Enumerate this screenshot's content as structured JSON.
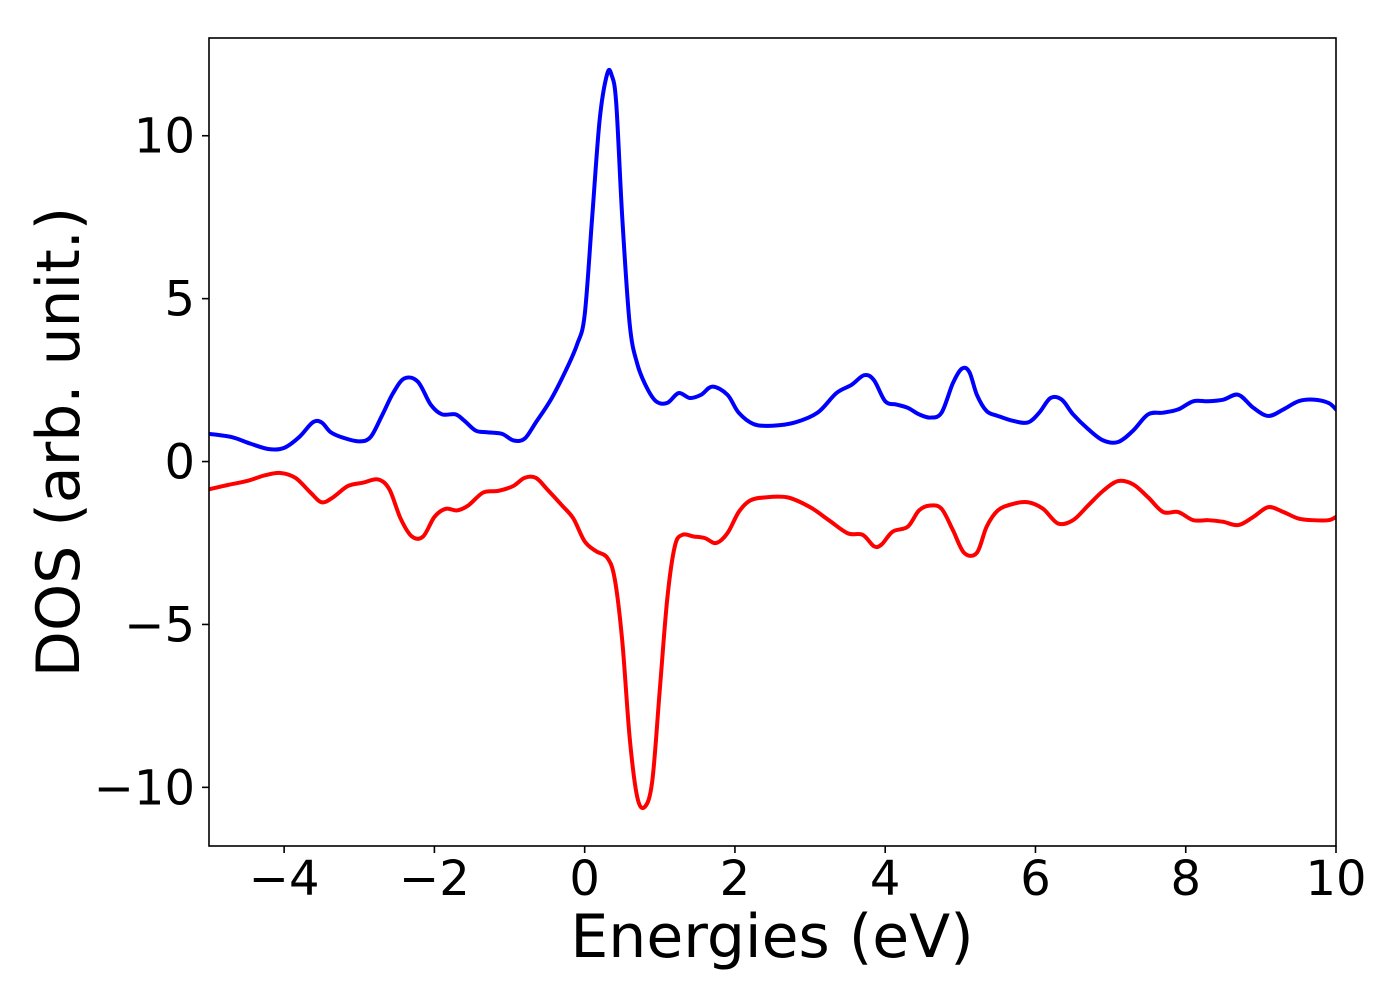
{
  "chart_data": {
    "type": "line",
    "title": "",
    "xlabel": "Energies (eV)",
    "ylabel": "DOS (arb. unit.)",
    "xlim": [
      -5,
      10
    ],
    "ylim": [
      -11.8,
      13.0
    ],
    "xticks": [
      {
        "value": -4,
        "label": "−4"
      },
      {
        "value": -2,
        "label": "−2"
      },
      {
        "value": 0,
        "label": "0"
      },
      {
        "value": 2,
        "label": "2"
      },
      {
        "value": 4,
        "label": "4"
      },
      {
        "value": 6,
        "label": "6"
      },
      {
        "value": 8,
        "label": "8"
      },
      {
        "value": 10,
        "label": "10"
      }
    ],
    "yticks": [
      {
        "value": -10,
        "label": "−10"
      },
      {
        "value": -5,
        "label": "−5"
      },
      {
        "value": 0,
        "label": "0"
      },
      {
        "value": 5,
        "label": "5"
      },
      {
        "value": 10,
        "label": "10"
      }
    ],
    "grid": false,
    "legend": false,
    "series": [
      {
        "color": "#0000ff",
        "x": [
          -5.0,
          -4.7,
          -4.45,
          -4.2,
          -4.0,
          -3.8,
          -3.62,
          -3.5,
          -3.38,
          -3.2,
          -3.0,
          -2.85,
          -2.7,
          -2.55,
          -2.4,
          -2.22,
          -2.05,
          -1.9,
          -1.72,
          -1.6,
          -1.45,
          -1.3,
          -1.1,
          -0.95,
          -0.8,
          -0.65,
          -0.45,
          -0.25,
          -0.1,
          0.0,
          0.1,
          0.2,
          0.3,
          0.36,
          0.42,
          0.5,
          0.6,
          0.7,
          0.82,
          0.95,
          1.1,
          1.25,
          1.4,
          1.55,
          1.7,
          1.9,
          2.05,
          2.25,
          2.5,
          2.8,
          3.1,
          3.35,
          3.55,
          3.72,
          3.85,
          4.0,
          4.15,
          4.3,
          4.45,
          4.6,
          4.75,
          4.9,
          5.02,
          5.12,
          5.22,
          5.35,
          5.5,
          5.7,
          5.9,
          6.05,
          6.2,
          6.35,
          6.5,
          6.7,
          6.9,
          7.1,
          7.3,
          7.5,
          7.7,
          7.9,
          8.1,
          8.3,
          8.5,
          8.7,
          8.9,
          9.1,
          9.3,
          9.5,
          9.7,
          9.9,
          10.0
        ],
        "y": [
          0.85,
          0.75,
          0.55,
          0.38,
          0.42,
          0.75,
          1.2,
          1.2,
          0.9,
          0.72,
          0.62,
          0.75,
          1.4,
          2.1,
          2.55,
          2.45,
          1.75,
          1.45,
          1.45,
          1.25,
          0.95,
          0.9,
          0.85,
          0.65,
          0.7,
          1.2,
          1.9,
          2.8,
          3.6,
          4.5,
          7.5,
          10.5,
          11.9,
          11.85,
          11.0,
          7.5,
          4.2,
          3.0,
          2.3,
          1.85,
          1.8,
          2.1,
          1.95,
          2.05,
          2.3,
          2.05,
          1.5,
          1.15,
          1.1,
          1.2,
          1.5,
          2.1,
          2.35,
          2.65,
          2.5,
          1.85,
          1.75,
          1.65,
          1.45,
          1.35,
          1.5,
          2.4,
          2.85,
          2.75,
          2.05,
          1.55,
          1.4,
          1.25,
          1.2,
          1.5,
          1.95,
          1.9,
          1.45,
          1.0,
          0.65,
          0.6,
          0.95,
          1.45,
          1.5,
          1.6,
          1.85,
          1.85,
          1.9,
          2.05,
          1.65,
          1.4,
          1.6,
          1.85,
          1.9,
          1.8,
          1.6
        ]
      },
      {
        "color": "#ff0000",
        "x": [
          -5.0,
          -4.75,
          -4.5,
          -4.25,
          -4.05,
          -3.85,
          -3.65,
          -3.5,
          -3.35,
          -3.15,
          -2.95,
          -2.75,
          -2.6,
          -2.45,
          -2.3,
          -2.15,
          -2.0,
          -1.85,
          -1.7,
          -1.55,
          -1.35,
          -1.15,
          -0.95,
          -0.8,
          -0.65,
          -0.5,
          -0.3,
          -0.15,
          0.0,
          0.15,
          0.3,
          0.4,
          0.5,
          0.6,
          0.7,
          0.8,
          0.9,
          1.0,
          1.1,
          1.2,
          1.3,
          1.45,
          1.6,
          1.75,
          1.9,
          2.05,
          2.2,
          2.4,
          2.7,
          3.0,
          3.25,
          3.5,
          3.7,
          3.85,
          3.95,
          4.1,
          4.3,
          4.45,
          4.6,
          4.75,
          4.9,
          5.05,
          5.22,
          5.35,
          5.5,
          5.7,
          5.9,
          6.1,
          6.3,
          6.5,
          6.7,
          6.9,
          7.1,
          7.3,
          7.5,
          7.7,
          7.9,
          8.1,
          8.3,
          8.5,
          8.7,
          8.9,
          9.1,
          9.3,
          9.5,
          9.7,
          9.9,
          10.0
        ],
        "y": [
          -0.85,
          -0.72,
          -0.6,
          -0.42,
          -0.35,
          -0.5,
          -0.95,
          -1.25,
          -1.1,
          -0.75,
          -0.65,
          -0.55,
          -0.85,
          -1.75,
          -2.3,
          -2.3,
          -1.7,
          -1.45,
          -1.5,
          -1.35,
          -0.95,
          -0.9,
          -0.75,
          -0.5,
          -0.5,
          -0.85,
          -1.35,
          -1.75,
          -2.45,
          -2.75,
          -2.95,
          -3.6,
          -5.5,
          -8.5,
          -10.3,
          -10.6,
          -9.8,
          -7.0,
          -4.2,
          -2.6,
          -2.25,
          -2.3,
          -2.35,
          -2.5,
          -2.2,
          -1.55,
          -1.2,
          -1.1,
          -1.1,
          -1.4,
          -1.8,
          -2.2,
          -2.25,
          -2.6,
          -2.55,
          -2.15,
          -2.0,
          -1.5,
          -1.35,
          -1.45,
          -2.1,
          -2.8,
          -2.8,
          -2.0,
          -1.5,
          -1.3,
          -1.25,
          -1.45,
          -1.9,
          -1.8,
          -1.35,
          -0.9,
          -0.6,
          -0.7,
          -1.1,
          -1.55,
          -1.55,
          -1.8,
          -1.8,
          -1.85,
          -1.95,
          -1.7,
          -1.4,
          -1.55,
          -1.75,
          -1.8,
          -1.8,
          -1.7
        ]
      }
    ]
  }
}
